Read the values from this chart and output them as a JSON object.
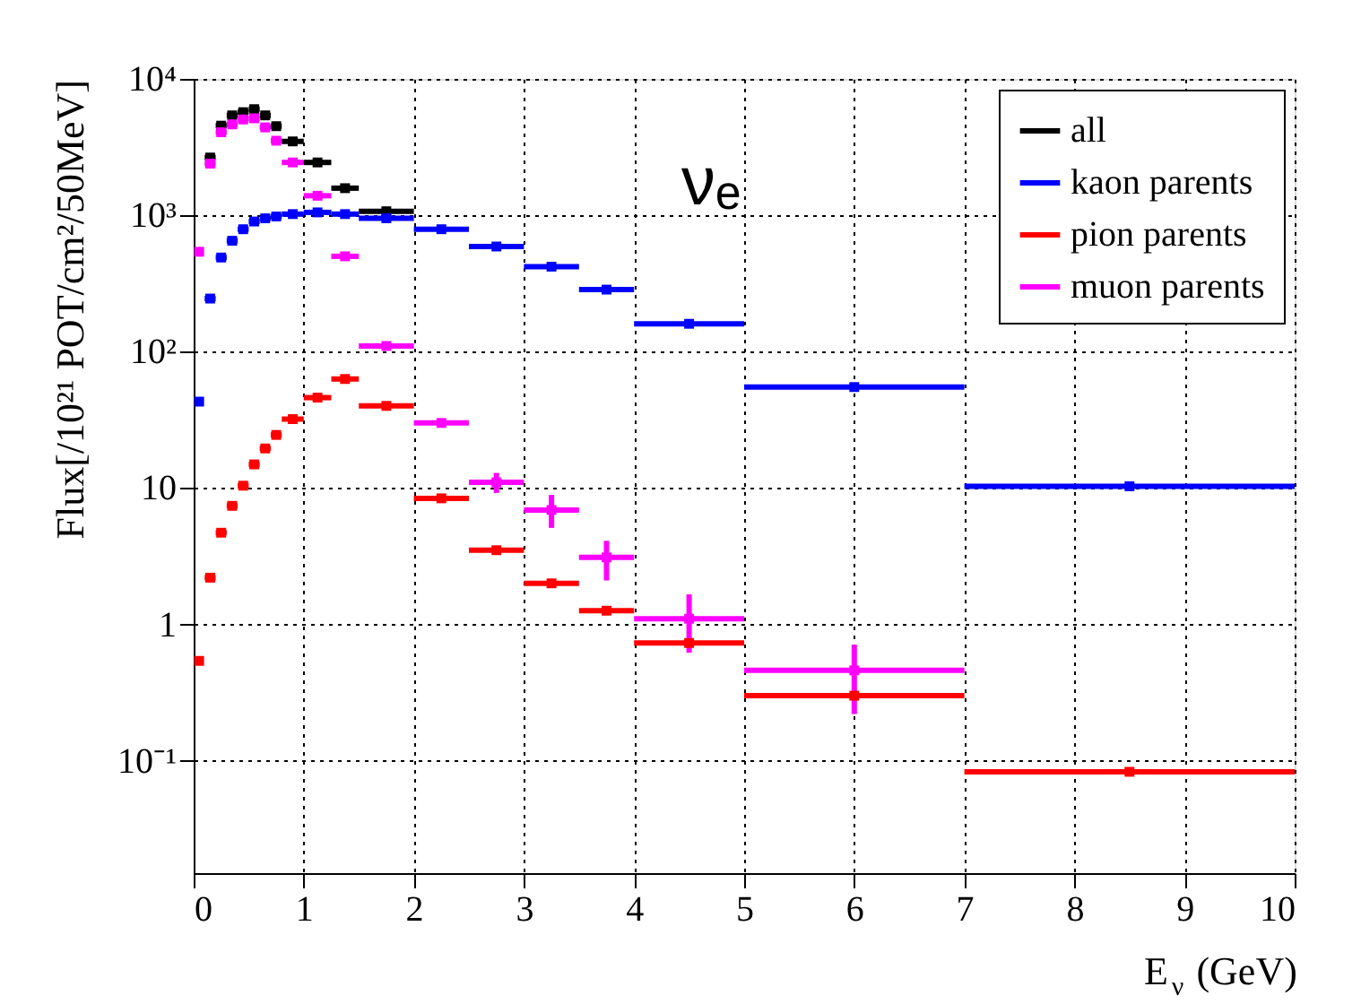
{
  "chart_data": {
    "type": "scatter",
    "x": [
      0.05,
      0.15,
      0.25,
      0.35,
      0.45,
      0.55,
      0.65,
      0.75,
      0.9,
      1.125,
      1.375,
      1.75,
      2.25,
      2.75,
      3.25,
      3.75,
      4.5,
      6,
      8.5
    ],
    "series": [
      {
        "name": "all",
        "color": "#000000",
        "values": [
          null,
          2650,
          4540,
          5400,
          5700,
          6000,
          5400,
          4500,
          3480,
          2440,
          1580,
          1070,
          null,
          null,
          null,
          null,
          null,
          null,
          null
        ],
        "xerrors": [
          null,
          0.05,
          0.05,
          0.05,
          0.05,
          0.05,
          0.05,
          0.05,
          0.1,
          0.125,
          0.125,
          0.25,
          null,
          null,
          null,
          null,
          null,
          null,
          null
        ]
      },
      {
        "name": "kaon parents",
        "color": "#0000ff",
        "values": [
          43,
          245,
          490,
          650,
          790,
          900,
          950,
          980,
          1020,
          1050,
          1020,
          950,
          790,
          590,
          420,
          285,
          160,
          55,
          10.3
        ],
        "xerrors": [
          null,
          0.05,
          0.05,
          0.05,
          0.05,
          0.05,
          0.05,
          0.05,
          0.1,
          0.125,
          0.125,
          0.25,
          0.25,
          0.25,
          0.25,
          0.25,
          0.5,
          1,
          1.5
        ]
      },
      {
        "name": "pion parents",
        "color": "#ff0000",
        "values": [
          0.54,
          2.2,
          4.7,
          7.4,
          10.4,
          14.9,
          19.5,
          24.5,
          32,
          46,
          63,
          40,
          8.4,
          3.5,
          2.0,
          1.26,
          0.73,
          0.3,
          0.083
        ],
        "xerrors": [
          null,
          0.05,
          0.05,
          0.05,
          0.05,
          0.05,
          0.05,
          0.05,
          0.1,
          0.125,
          0.125,
          0.25,
          0.25,
          0.25,
          0.25,
          0.25,
          0.5,
          1,
          1.5
        ]
      },
      {
        "name": "muon parents",
        "color": "#ff00ff",
        "values": [
          540,
          2390,
          4060,
          4640,
          5040,
          5140,
          4410,
          3520,
          2440,
          1390,
          500,
          110,
          30,
          11,
          6.9,
          3.1,
          1.1,
          0.46,
          null
        ],
        "xerrors": [
          null,
          0.05,
          0.05,
          0.05,
          0.05,
          0.05,
          0.05,
          0.05,
          0.1,
          0.125,
          0.125,
          0.25,
          0.25,
          0.25,
          0.25,
          0.25,
          0.5,
          1,
          null
        ],
        "errors": [
          null,
          null,
          null,
          null,
          null,
          null,
          null,
          null,
          null,
          null,
          null,
          null,
          null,
          [
            9.2,
            12.9
          ],
          [
            5.1,
            8.9
          ],
          [
            2.1,
            4.1
          ],
          [
            0.62,
            1.66
          ],
          [
            0.22,
            0.71
          ],
          null
        ]
      }
    ],
    "xlabel": "E$_{ν}$ (GeV)",
    "ylabel": "Flux[/10²¹ POT/cm²/50MeV]",
    "annotations": [
      "νₑ"
    ],
    "xlim": [
      0,
      10
    ],
    "xticks": [
      0,
      1,
      2,
      3,
      4,
      5,
      6,
      7,
      8,
      9,
      10
    ],
    "ylim": [
      0.015,
      10000
    ],
    "yticks": [
      {
        "value": 0.1,
        "label": "10⁻¹"
      },
      1,
      10,
      {
        "value": 100,
        "label": "10²"
      },
      {
        "value": 1000,
        "label": "10³"
      },
      {
        "value": 10000,
        "label": "10⁴"
      }
    ],
    "log": "y",
    "grid": true,
    "legend": "top right",
    "marker": "square"
  }
}
